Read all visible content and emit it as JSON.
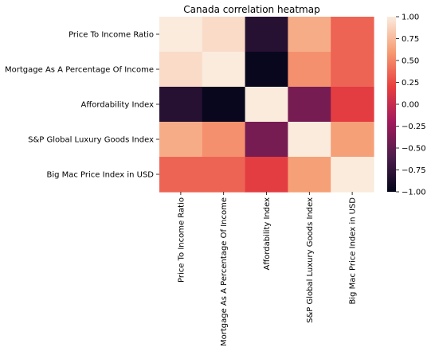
{
  "chart_data": {
    "type": "heatmap",
    "title": "Canada correlation heatmap",
    "rows": [
      "Price To Income Ratio",
      "Mortgage As A Percentage Of Income",
      "Affordability Index",
      "S&P Global Luxury Goods Index",
      "Big Mac Price Index in USD"
    ],
    "columns": [
      "Price To Income Ratio",
      "Mortgage As A Percentage Of Income",
      "Affordability Index",
      "S&P Global Luxury Goods Index",
      "Big Mac Price Index in USD"
    ],
    "values": [
      [
        1.0,
        0.92,
        -0.8,
        0.68,
        0.36
      ],
      [
        0.92,
        1.0,
        -0.97,
        0.55,
        0.36
      ],
      [
        -0.8,
        -0.97,
        1.0,
        -0.4,
        0.17
      ],
      [
        0.68,
        0.55,
        -0.4,
        1.0,
        0.62
      ],
      [
        0.36,
        0.36,
        0.17,
        0.62,
        1.0
      ]
    ],
    "colorbar": {
      "range": [
        -1,
        1
      ],
      "ticks": [
        "1.00",
        "0.75",
        "0.50",
        "0.25",
        "0.00",
        "−0.25",
        "−0.50",
        "−0.75",
        "−1.00"
      ],
      "tick_values": [
        1.0,
        0.75,
        0.5,
        0.25,
        0.0,
        -0.25,
        -0.5,
        -0.75,
        -1.0
      ],
      "colormap": "rocket",
      "colormap_stops": [
        "#03051a",
        "#4c1d4b",
        "#a11a5b",
        "#e83f3f",
        "#f69c73",
        "#faebdd"
      ]
    },
    "grid": false
  }
}
